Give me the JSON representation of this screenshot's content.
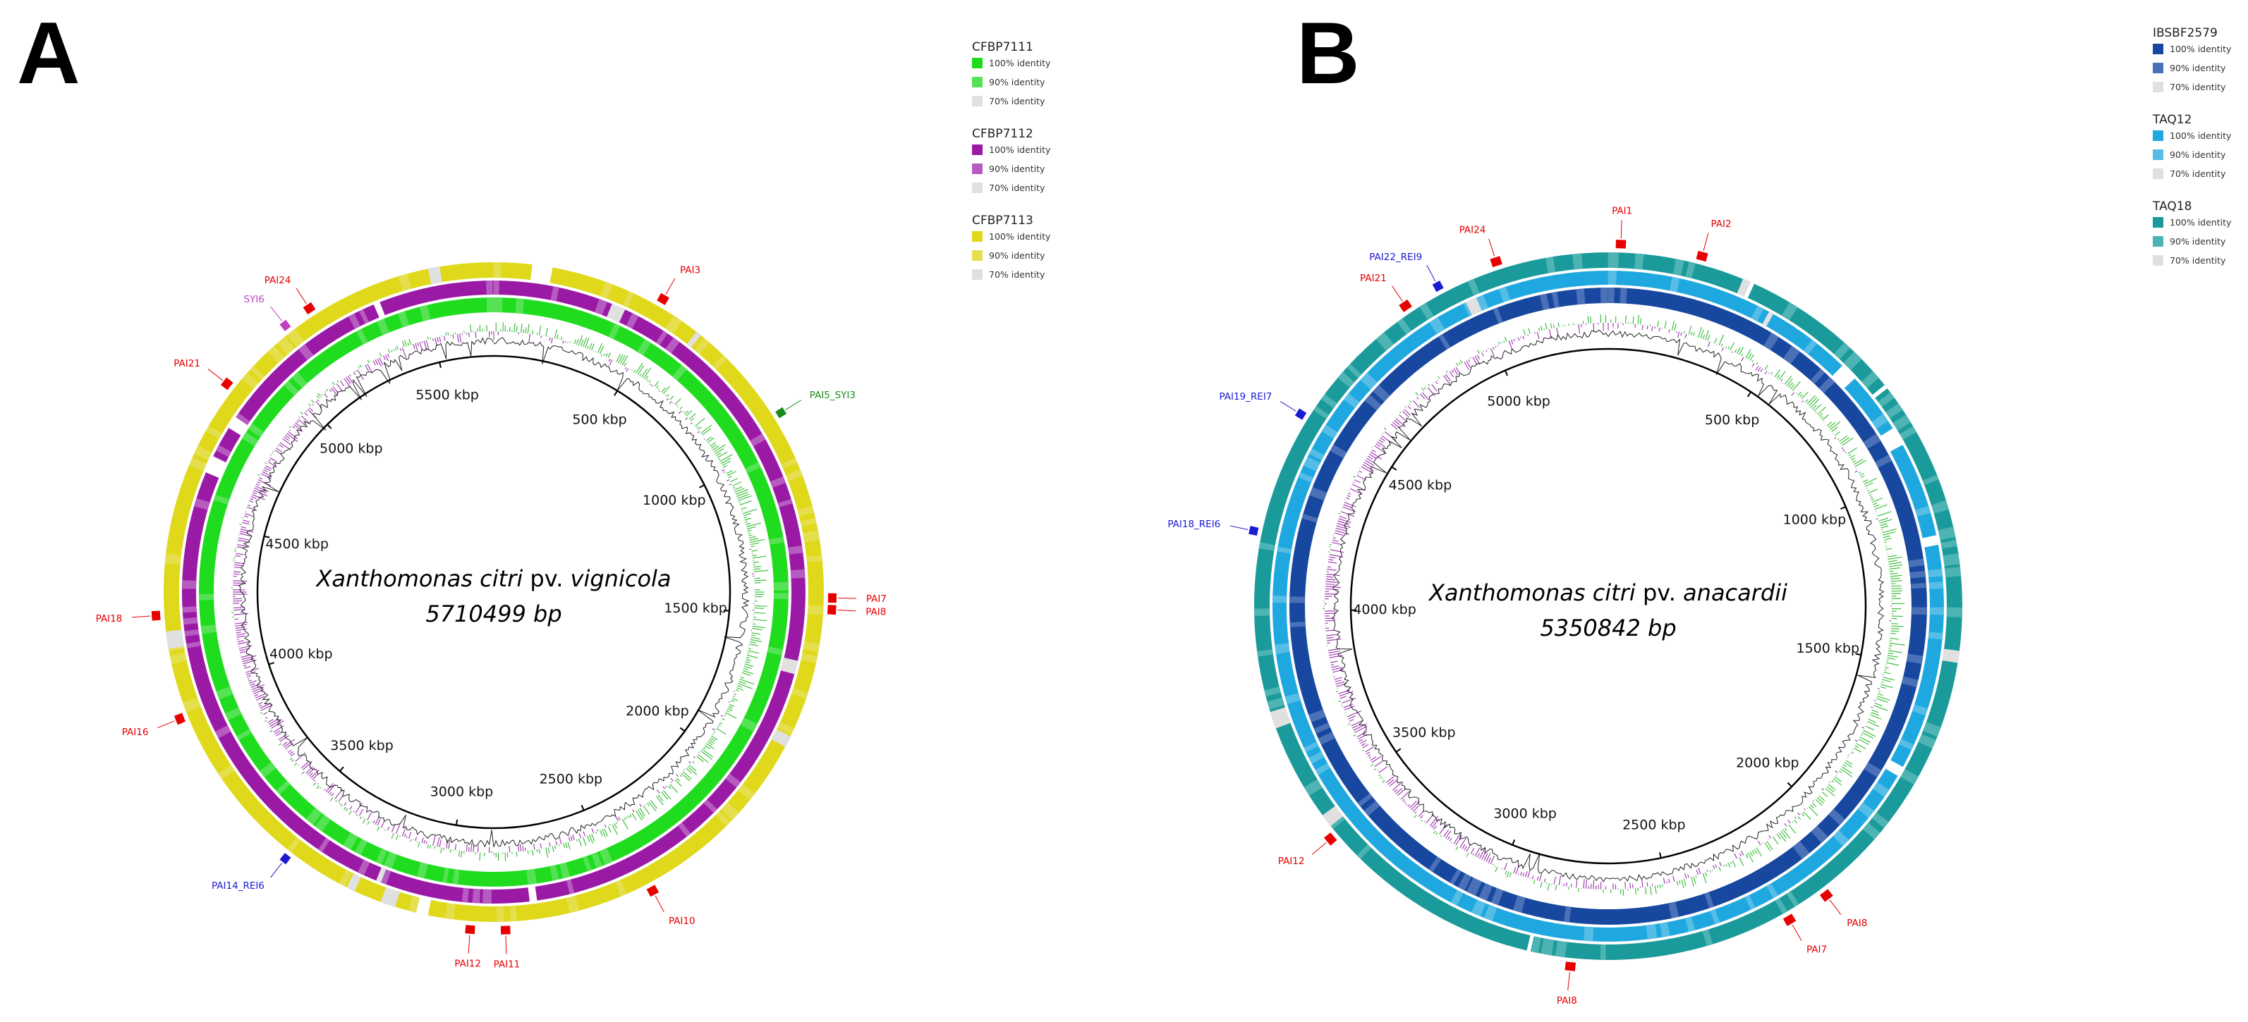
{
  "panels": [
    {
      "id": "A",
      "letter": "A",
      "name_prefix": "Xanthomonas citri",
      "name_mid": " pv. ",
      "name_suffix": "vignicola",
      "size_label": "5710499 bp",
      "genome_length_bp": 5710499,
      "ticks": [
        "500 kbp",
        "1000 kbp",
        "1500 kbp",
        "2000 kbp",
        "2500 kbp",
        "3000 kbp",
        "3500 kbp",
        "4000 kbp",
        "4500 kbp",
        "5000 kbp",
        "5500 kbp"
      ],
      "rings": [
        {
          "name": "CFBP7111",
          "color100": "#1fdc1f",
          "color90": "#55e255",
          "color70": "#e0e0e0",
          "coverage": 0.995
        },
        {
          "name": "CFBP7112",
          "color100": "#9a1aa6",
          "color90": "#b65bbf",
          "color70": "#e0e0e0",
          "coverage": 0.88
        },
        {
          "name": "CFBP7113",
          "color100": "#e0d81a",
          "color90": "#e6df4d",
          "color70": "#e0e0e0",
          "coverage": 0.86
        }
      ],
      "legend": [
        {
          "name": "CFBP7111",
          "entries": [
            {
              "label": "100% identity",
              "color": "#1fdc1f"
            },
            {
              "label": "90% identity",
              "color": "#55e255"
            },
            {
              "label": "70% identity",
              "color": "#e0e0e0"
            }
          ]
        },
        {
          "name": "CFBP7112",
          "entries": [
            {
              "label": "100% identity",
              "color": "#9a1aa6"
            },
            {
              "label": "90% identity",
              "color": "#b65bbf"
            },
            {
              "label": "70% identity",
              "color": "#e0e0e0"
            }
          ]
        },
        {
          "name": "CFBP7113",
          "entries": [
            {
              "label": "100% identity",
              "color": "#e0d81a"
            },
            {
              "label": "90% identity",
              "color": "#e6df4d"
            },
            {
              "label": "70% identity",
              "color": "#e0e0e0"
            }
          ]
        }
      ],
      "annotations": [
        {
          "label": "PAI24",
          "angle_deg": -33,
          "color": "#e60000",
          "type": "red"
        },
        {
          "label": "SYI6",
          "angle_deg": -38,
          "color": "#c040c0",
          "type": "purple"
        },
        {
          "label": "PAI3",
          "angle_deg": 30,
          "color": "#e60000",
          "type": "red"
        },
        {
          "label": "PAI5_SYI3",
          "angle_deg": 58,
          "color": "#1a8a1a",
          "type": "green"
        },
        {
          "label": "PAI21",
          "angle_deg": -52,
          "color": "#e60000",
          "type": "red"
        },
        {
          "label": "PAI7",
          "angle_deg": 91,
          "color": "#e60000",
          "type": "red"
        },
        {
          "label": "PAI8",
          "angle_deg": 93,
          "color": "#e60000",
          "type": "red"
        },
        {
          "label": "PAI18",
          "angle_deg": -94,
          "color": "#e60000",
          "type": "red"
        },
        {
          "label": "PAI16",
          "angle_deg": -112,
          "color": "#e60000",
          "type": "red"
        },
        {
          "label": "PAI10",
          "angle_deg": 152,
          "color": "#e60000",
          "type": "red"
        },
        {
          "label": "PAI14_REI6",
          "angle_deg": -142,
          "color": "#1a1ad0",
          "type": "blue"
        },
        {
          "label": "PAI12",
          "angle_deg": 184,
          "color": "#e60000",
          "type": "red"
        },
        {
          "label": "PAI11",
          "angle_deg": 178,
          "color": "#e60000",
          "type": "red"
        }
      ]
    },
    {
      "id": "B",
      "letter": "B",
      "name_prefix": "Xanthomonas citri",
      "name_mid": " pv. ",
      "name_suffix": "anacardii",
      "size_label": "5350842 bp",
      "genome_length_bp": 5350842,
      "ticks": [
        "500 kbp",
        "1000 kbp",
        "1500 kbp",
        "2000 kbp",
        "2500 kbp",
        "3000 kbp",
        "3500 kbp",
        "4000 kbp",
        "4500 kbp",
        "5000 kbp"
      ],
      "rings": [
        {
          "name": "IBSBF2579",
          "color100": "#17479e",
          "color90": "#4a70b8",
          "color70": "#e0e0e0",
          "coverage": 0.995
        },
        {
          "name": "TAQ12",
          "color100": "#1fa8e0",
          "color90": "#55bde6",
          "color70": "#e0e0e0",
          "coverage": 0.9
        },
        {
          "name": "TAQ18",
          "color100": "#1a9a9a",
          "color90": "#4db3b3",
          "color70": "#e0e0e0",
          "coverage": 0.88
        }
      ],
      "legend": [
        {
          "name": "IBSBF2579",
          "entries": [
            {
              "label": "100% identity",
              "color": "#17479e"
            },
            {
              "label": "90% identity",
              "color": "#4a70b8"
            },
            {
              "label": "70% identity",
              "color": "#e0e0e0"
            }
          ]
        },
        {
          "name": "TAQ12",
          "entries": [
            {
              "label": "100% identity",
              "color": "#1fa8e0"
            },
            {
              "label": "90% identity",
              "color": "#55bde6"
            },
            {
              "label": "70% identity",
              "color": "#e0e0e0"
            }
          ]
        },
        {
          "name": "TAQ18",
          "entries": [
            {
              "label": "100% identity",
              "color": "#1a9a9a"
            },
            {
              "label": "90% identity",
              "color": "#4db3b3"
            },
            {
              "label": "70% identity",
              "color": "#e0e0e0"
            }
          ]
        }
      ],
      "annotations": [
        {
          "label": "PAI1",
          "angle_deg": 2,
          "color": "#e60000",
          "type": "red"
        },
        {
          "label": "PAI2",
          "angle_deg": 15,
          "color": "#e60000",
          "type": "red"
        },
        {
          "label": "PAI24",
          "angle_deg": -18,
          "color": "#e60000",
          "type": "red"
        },
        {
          "label": "PAI22_REI9",
          "angle_deg": -28,
          "color": "#1a1ad0",
          "type": "blue"
        },
        {
          "label": "PAI21",
          "angle_deg": -34,
          "color": "#e60000",
          "type": "red"
        },
        {
          "label": "PAI19_REI7",
          "angle_deg": -58,
          "color": "#1a1ad0",
          "type": "blue"
        },
        {
          "label": "PAI18_REI6",
          "angle_deg": -78,
          "color": "#1a1ad0",
          "type": "blue"
        },
        {
          "label": "PAI12",
          "angle_deg": -130,
          "color": "#e60000",
          "type": "red"
        },
        {
          "label": "PAI8",
          "angle_deg": 143,
          "color": "#e60000",
          "type": "red"
        },
        {
          "label": "PAI7",
          "angle_deg": 150,
          "color": "#e60000",
          "type": "red"
        },
        {
          "label": "PAI8",
          "angle_deg": 186,
          "color": "#e60000",
          "type": "red"
        }
      ]
    }
  ]
}
